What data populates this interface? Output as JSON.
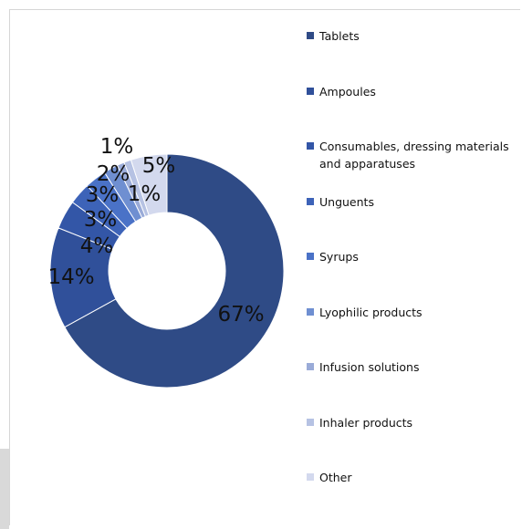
{
  "chart_data": {
    "type": "pie",
    "donut": true,
    "categories": [
      "Tablets",
      "Ampoules",
      "Consumables, dressing materials and apparatuses",
      "Unguents",
      "Syrups",
      "Lyophilic products",
      "Infusion solutions",
      "Inhaler products",
      "Other"
    ],
    "values": [
      67,
      14,
      4,
      3,
      3,
      2,
      1,
      1,
      5
    ],
    "value_labels": [
      "67%",
      "14%",
      "4%",
      "3%",
      "3%",
      "2%",
      "1%",
      "1%",
      "5%"
    ],
    "colors": [
      "#2f4b86",
      "#30509a",
      "#3356a7",
      "#3d63b8",
      "#4a72c7",
      "#6f8fd1",
      "#9aabd8",
      "#b6c2e3",
      "#d3d9ee"
    ],
    "legend_position": "right",
    "title": ""
  }
}
